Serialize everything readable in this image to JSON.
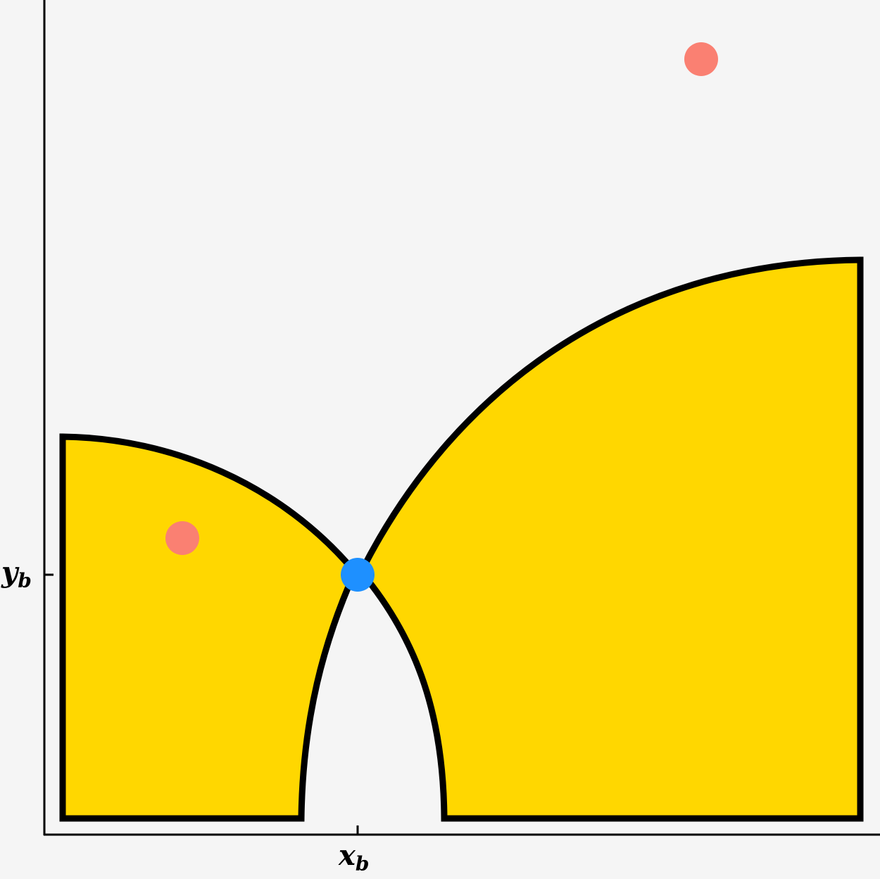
{
  "figure": {
    "background": "#f5f5f5",
    "axes": {
      "x_tick_label": "x",
      "x_tick_subscript": "b",
      "y_tick_label": "y",
      "y_tick_subscript": "b"
    },
    "regions": {
      "fill_color": "#ffd700",
      "stroke_color": "#000000"
    },
    "points": {
      "intersection_color": "#1e90ff",
      "marker_color": "#fa8072"
    }
  }
}
